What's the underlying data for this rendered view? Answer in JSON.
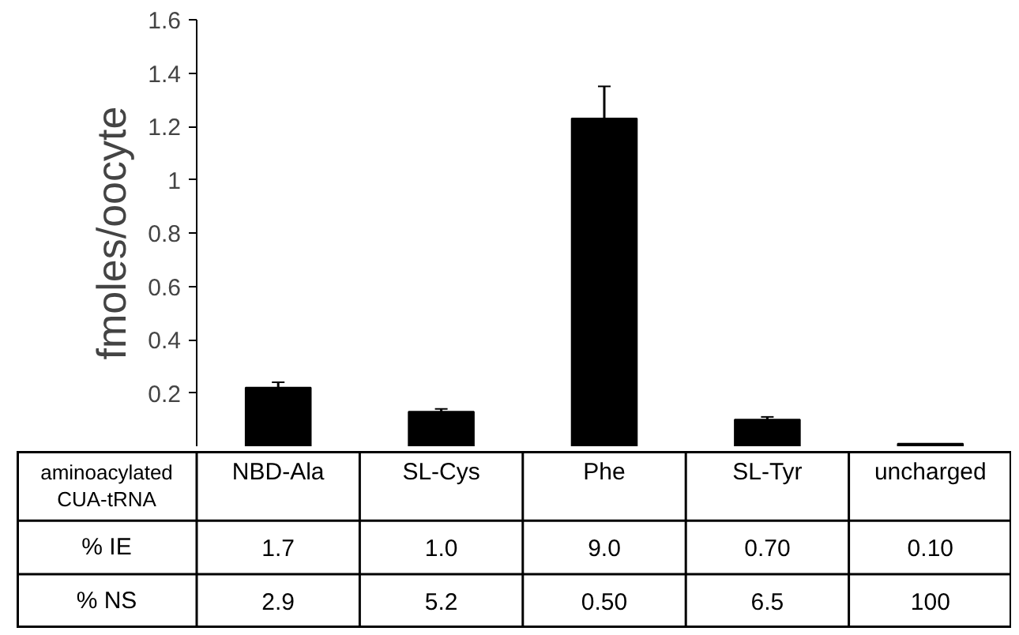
{
  "chart_data": {
    "type": "bar",
    "ylabel": "fmoles/oocyte",
    "categories": [
      "NBD-Ala",
      "SL-Cys",
      "Phe",
      "SL-Tyr",
      "uncharged"
    ],
    "values": [
      0.22,
      0.13,
      1.23,
      0.1,
      0.01
    ],
    "errors": [
      0.02,
      0.01,
      0.12,
      0.01,
      null
    ],
    "color": "#000000",
    "ylim": [
      0,
      1.6
    ],
    "yticks": [
      0.2,
      0.4,
      0.6,
      0.8,
      1,
      1.2,
      1.4,
      1.6
    ],
    "grid": false,
    "annotations": [
      "aminoacylated CUA-tRNA",
      "% IE",
      "1.7",
      "1.0",
      "9.0",
      "0.70",
      "0.10",
      "% NS",
      "2.9",
      "5.2",
      "0.50",
      "6.5",
      "100"
    ]
  }
}
